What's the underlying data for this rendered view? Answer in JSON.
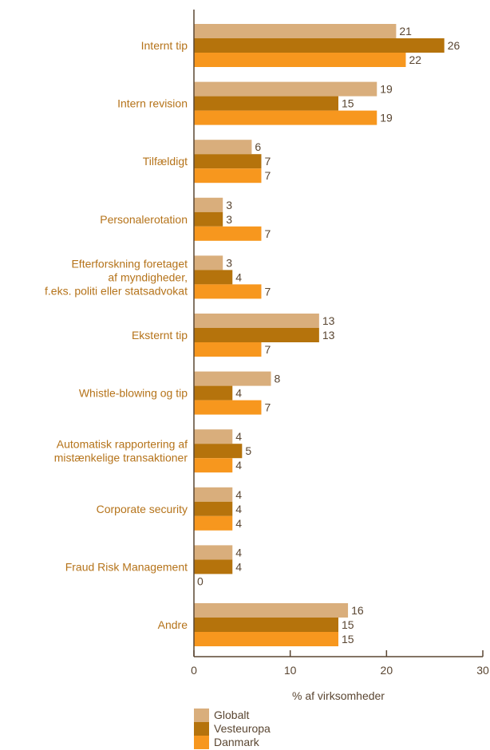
{
  "chart_data": {
    "type": "bar",
    "orientation": "horizontal",
    "categories": [
      [
        "Internt tip"
      ],
      [
        "Intern revision"
      ],
      [
        "Tilfældigt"
      ],
      [
        "Personalerotation"
      ],
      [
        "Efterforskning foretaget",
        "af myndigheder,",
        "f.eks. politi eller statsadvokat"
      ],
      [
        "Eksternt tip"
      ],
      [
        "Whistle-blowing og tip"
      ],
      [
        "Automatisk rapportering af",
        "mistænkelige transaktioner"
      ],
      [
        "Corporate security"
      ],
      [
        "Fraud Risk Management"
      ],
      [
        "Andre"
      ]
    ],
    "series": [
      {
        "name": "Globalt",
        "color": "#d9ae7c",
        "values": [
          21,
          19,
          6,
          3,
          3,
          13,
          8,
          4,
          4,
          4,
          16
        ]
      },
      {
        "name": "Vesteuropa",
        "color": "#b5730c",
        "values": [
          26,
          15,
          7,
          3,
          4,
          13,
          4,
          5,
          4,
          4,
          15
        ]
      },
      {
        "name": "Danmark",
        "color": "#f7971e",
        "values": [
          22,
          19,
          7,
          7,
          7,
          7,
          7,
          4,
          4,
          0,
          15
        ]
      }
    ],
    "xlabel": "% af virksomheder",
    "xlim": [
      0,
      30
    ],
    "xticks": [
      0,
      10,
      20,
      30
    ],
    "grid": false,
    "legend_position": "bottom-left",
    "label_color": "#b5731a",
    "text_color": "#5a4632",
    "axis_color": "#5a4632"
  }
}
